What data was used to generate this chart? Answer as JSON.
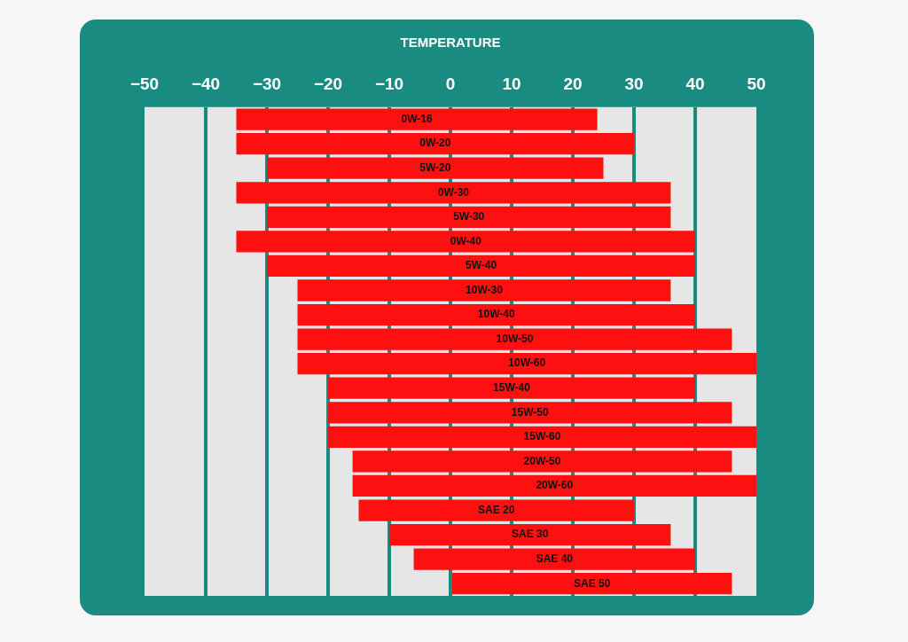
{
  "chart_data": {
    "type": "bar",
    "orientation": "horizontal",
    "title": "TEMPERATURE",
    "categories": [
      "0W-16",
      "0W-20",
      "5W-20",
      "0W-30",
      "5W-30",
      "0W-40",
      "5W-40",
      "10W-30",
      "10W-40",
      "10W-50",
      "10W-60",
      "15W-40",
      "15W-50",
      "15W-60",
      "20W-50",
      "20W-60",
      "SAE 20",
      "SAE 30",
      "SAE 40",
      "SAE 50"
    ],
    "base": [
      -35,
      -35,
      -30,
      -35,
      -30,
      -35,
      -30,
      -25,
      -25,
      -25,
      -25,
      -20,
      -20,
      -20,
      -16,
      -16,
      -15,
      -10,
      -6,
      0
    ],
    "values": [
      59,
      65,
      55,
      71,
      66,
      75,
      70,
      61,
      65,
      71,
      75,
      60,
      66,
      70,
      62,
      66,
      45,
      46,
      46,
      46
    ],
    "color": "#ff1010",
    "xlim": [
      -50,
      50
    ],
    "xticks": [
      -50,
      -40,
      -30,
      -20,
      -10,
      0,
      10,
      20,
      30,
      40,
      50
    ],
    "grid": "x",
    "legend": false
  }
}
